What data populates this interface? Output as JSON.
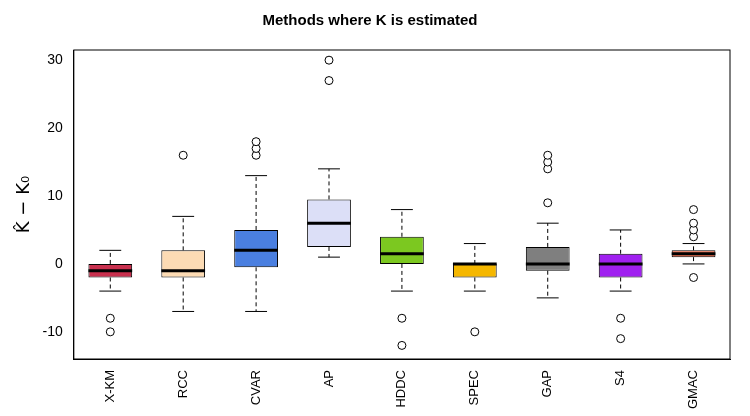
{
  "chart_data": {
    "type": "box",
    "title": "Methods where K is estimated",
    "y_label": "K̂ − K₀",
    "categories": [
      "X-KM",
      "RCC",
      "CVAR",
      "AP",
      "HDDC",
      "SPEC",
      "GAP",
      "S4",
      "GMAC"
    ],
    "colors": [
      "#c8304e",
      "#fcdbb4",
      "#4a7fe0",
      "#dcdff7",
      "#7cc820",
      "#f5b700",
      "#7f7f7f",
      "#a020f0",
      "#f07050"
    ],
    "values": [
      {
        "min": -4,
        "q1": -2,
        "median": -1,
        "q3": 0,
        "max": 2,
        "outliers": [
          -8,
          -10
        ]
      },
      {
        "min": -7,
        "q1": -2,
        "median": -1,
        "q3": 2,
        "max": 7,
        "outliers": [
          16
        ]
      },
      {
        "min": -7,
        "q1": -0.5,
        "median": 2,
        "q3": 5,
        "max": 13,
        "outliers": [
          16,
          17,
          18
        ]
      },
      {
        "min": 1,
        "q1": 2.5,
        "median": 6,
        "q3": 9.5,
        "max": 14,
        "outliers": [
          27,
          30
        ]
      },
      {
        "min": -4,
        "q1": 0,
        "median": 1.5,
        "q3": 4,
        "max": 8,
        "outliers": [
          -8,
          -12
        ]
      },
      {
        "min": -4,
        "q1": -2,
        "median": 0,
        "q3": 0,
        "max": 3,
        "outliers": [
          -10
        ]
      },
      {
        "min": -5,
        "q1": -1,
        "median": 0,
        "q3": 2.5,
        "max": 6,
        "outliers": [
          9,
          14,
          15,
          16
        ]
      },
      {
        "min": -4,
        "q1": -2,
        "median": 0,
        "q3": 1.5,
        "max": 5,
        "outliers": [
          -8,
          -11
        ]
      },
      {
        "min": 0,
        "q1": 1,
        "median": 1.5,
        "q3": 2,
        "max": 3,
        "outliers": [
          -2,
          4,
          5,
          6,
          8
        ]
      }
    ],
    "ylim": [
      -14,
      31.5
    ],
    "yticks": [
      -10,
      0,
      10,
      20,
      30
    ],
    "grid": false
  }
}
